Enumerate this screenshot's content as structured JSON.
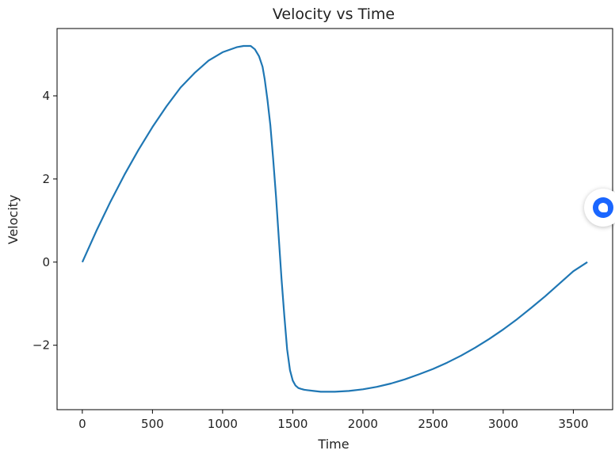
{
  "chart_data": {
    "type": "line",
    "title": "Velocity vs Time",
    "xlabel": "Time",
    "ylabel": "Velocity",
    "xlim": [
      -180,
      3780
    ],
    "ylim": [
      -3.55,
      5.62
    ],
    "xticks": [
      0,
      500,
      1000,
      1500,
      2000,
      2500,
      3000,
      3500
    ],
    "xtick_labels": [
      "0",
      "500",
      "1000",
      "1500",
      "2000",
      "2500",
      "3000",
      "3500"
    ],
    "yticks": [
      -2,
      0,
      2,
      4
    ],
    "ytick_labels": [
      "−2",
      "0",
      "2",
      "4"
    ],
    "grid": false,
    "series": [
      {
        "name": "Velocity",
        "color": "#1f77b4",
        "x": [
          0,
          100,
          200,
          300,
          400,
          500,
          600,
          700,
          800,
          900,
          1000,
          1100,
          1150,
          1200,
          1230,
          1260,
          1285,
          1300,
          1320,
          1340,
          1360,
          1380,
          1400,
          1420,
          1440,
          1460,
          1480,
          1500,
          1520,
          1540,
          1560,
          1580,
          1600,
          1650,
          1700,
          1750,
          1800,
          1850,
          1900,
          2000,
          2100,
          2200,
          2300,
          2400,
          2500,
          2600,
          2700,
          2800,
          2900,
          3000,
          3100,
          3200,
          3300,
          3400,
          3500,
          3600
        ],
        "y": [
          0,
          0.75,
          1.45,
          2.1,
          2.7,
          3.25,
          3.75,
          4.2,
          4.55,
          4.85,
          5.05,
          5.17,
          5.2,
          5.2,
          5.12,
          4.95,
          4.7,
          4.4,
          3.9,
          3.3,
          2.5,
          1.6,
          0.6,
          -0.4,
          -1.3,
          -2.1,
          -2.6,
          -2.85,
          -2.97,
          -3.03,
          -3.05,
          -3.07,
          -3.08,
          -3.1,
          -3.12,
          -3.12,
          -3.12,
          -3.11,
          -3.1,
          -3.06,
          -3.0,
          -2.92,
          -2.82,
          -2.7,
          -2.57,
          -2.42,
          -2.25,
          -2.06,
          -1.85,
          -1.62,
          -1.37,
          -1.1,
          -0.82,
          -0.52,
          -0.22,
          0.0
        ]
      }
    ]
  },
  "widget": {
    "icon": "chat-bubble-icon",
    "color": "#1a66ff"
  }
}
